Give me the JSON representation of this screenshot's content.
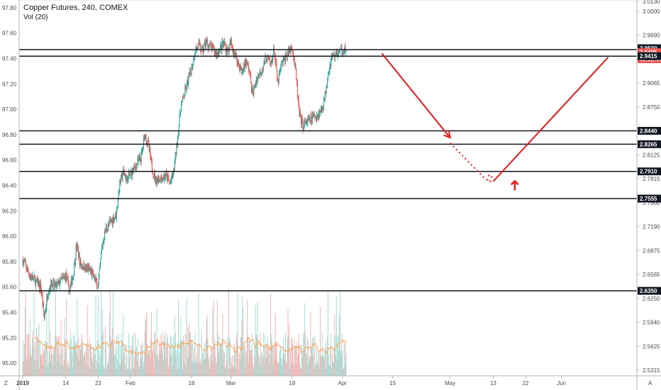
{
  "header": {
    "title": "Copper Futures, 240, COMEX",
    "indicator": "Vol (20)"
  },
  "corner": {
    "bottom_left": "Z",
    "bottom_right": "A"
  },
  "chart_data": {
    "type": "candlestick",
    "symbol": "Copper Futures",
    "timeframe": "240",
    "exchange": "COMEX",
    "left_axis": {
      "ticks": [
        "97.80",
        "97.60",
        "97.40",
        "97.20",
        "97.00",
        "96.80",
        "96.60",
        "96.40",
        "96.20",
        "96.00",
        "95.80",
        "95.60",
        "95.40",
        "95.20",
        "95.00"
      ],
      "range": [
        94.9,
        97.85
      ]
    },
    "right_axis": {
      "ticks": [
        "3.0130",
        "3.0000",
        "2.9690",
        "2.9380",
        "2.9065",
        "2.8750",
        "2.8125",
        "2.7815",
        "2.7500",
        "2.7190",
        "2.6875",
        "2.6565",
        "2.6250",
        "2.5940",
        "2.5625",
        "2.5315"
      ],
      "range": [
        2.524,
        3.013
      ]
    },
    "x_axis": {
      "ticks": [
        "2019",
        "14",
        "23",
        "Feb",
        "18",
        "Mar",
        "18",
        "Apr",
        "15",
        "May",
        "13",
        "22",
        "Jun"
      ]
    },
    "price_labels": [
      {
        "value": "2.9500",
        "color": "#131722"
      },
      {
        "value": "2.9495",
        "color": "#ef5350"
      },
      {
        "value": "02:32:47",
        "color": "#ef5350"
      },
      {
        "value": "2.9415",
        "color": "#131722"
      },
      {
        "value": "2.8440",
        "color": "#131722"
      },
      {
        "value": "2.8265",
        "color": "#131722"
      },
      {
        "value": "2.7910",
        "color": "#131722"
      },
      {
        "value": "2.7555",
        "color": "#131722"
      },
      {
        "value": "2.6350",
        "color": "#131722"
      }
    ],
    "horizontal_levels": [
      2.95,
      2.9415,
      2.844,
      2.8265,
      2.791,
      2.7555,
      2.635
    ],
    "price_path": [
      [
        "2019-01-02",
        2.675
      ],
      [
        "2019-01-04",
        2.655
      ],
      [
        "2019-01-07",
        2.64
      ],
      [
        "2019-01-08",
        2.6
      ],
      [
        "2019-01-09",
        2.635
      ],
      [
        "2019-01-10",
        2.645
      ],
      [
        "2019-01-11",
        2.64
      ],
      [
        "2019-01-14",
        2.655
      ],
      [
        "2019-01-15",
        2.635
      ],
      [
        "2019-01-16",
        2.655
      ],
      [
        "2019-01-17",
        2.695
      ],
      [
        "2019-01-18",
        2.67
      ],
      [
        "2019-01-21",
        2.66
      ],
      [
        "2019-01-22",
        2.65
      ],
      [
        "2019-01-23",
        2.64
      ],
      [
        "2019-01-24",
        2.69
      ],
      [
        "2019-01-25",
        2.715
      ],
      [
        "2019-01-28",
        2.735
      ],
      [
        "2019-01-29",
        2.775
      ],
      [
        "2019-01-30",
        2.79
      ],
      [
        "2019-01-31",
        2.78
      ],
      [
        "2019-02-04",
        2.81
      ],
      [
        "2019-02-05",
        2.84
      ],
      [
        "2019-02-06",
        2.825
      ],
      [
        "2019-02-07",
        2.795
      ],
      [
        "2019-02-08",
        2.78
      ],
      [
        "2019-02-11",
        2.785
      ],
      [
        "2019-02-12",
        2.775
      ],
      [
        "2019-02-13",
        2.79
      ],
      [
        "2019-02-14",
        2.83
      ],
      [
        "2019-02-15",
        2.875
      ],
      [
        "2019-02-18",
        2.925
      ],
      [
        "2019-02-19",
        2.95
      ],
      [
        "2019-02-20",
        2.955
      ],
      [
        "2019-02-21",
        2.948
      ],
      [
        "2019-02-22",
        2.96
      ],
      [
        "2019-02-25",
        2.945
      ],
      [
        "2019-02-26",
        2.952
      ],
      [
        "2019-02-27",
        2.958
      ],
      [
        "2019-02-28",
        2.948
      ],
      [
        "2019-03-01",
        2.958
      ],
      [
        "2019-03-04",
        2.92
      ],
      [
        "2019-03-05",
        2.935
      ],
      [
        "2019-03-06",
        2.925
      ],
      [
        "2019-03-07",
        2.89
      ],
      [
        "2019-03-08",
        2.91
      ],
      [
        "2019-03-11",
        2.94
      ],
      [
        "2019-03-12",
        2.93
      ],
      [
        "2019-03-13",
        2.95
      ],
      [
        "2019-03-14",
        2.905
      ],
      [
        "2019-03-15",
        2.93
      ],
      [
        "2019-03-18",
        2.955
      ],
      [
        "2019-03-19",
        2.92
      ],
      [
        "2019-03-20",
        2.865
      ],
      [
        "2019-03-21",
        2.85
      ],
      [
        "2019-03-22",
        2.855
      ],
      [
        "2019-03-25",
        2.865
      ],
      [
        "2019-03-26",
        2.87
      ],
      [
        "2019-03-27",
        2.885
      ],
      [
        "2019-03-28",
        2.92
      ],
      [
        "2019-03-29",
        2.94
      ],
      [
        "2019-04-01",
        2.95
      ],
      [
        "2019-04-02",
        2.9495
      ]
    ],
    "projection": {
      "down_arrow": [
        [
          "2019-04-12",
          2.945
        ],
        [
          "2019-05-01",
          2.835
        ]
      ],
      "dotted": [
        [
          "2019-05-01",
          2.828
        ],
        [
          "2019-05-11",
          2.78
        ]
      ],
      "up_line": [
        [
          "2019-05-13",
          2.778
        ],
        [
          "2019-06-14",
          2.94
        ]
      ],
      "up_marker": [
        "2019-05-19",
        2.77
      ]
    },
    "volume": {
      "ma_period": 20
    }
  }
}
